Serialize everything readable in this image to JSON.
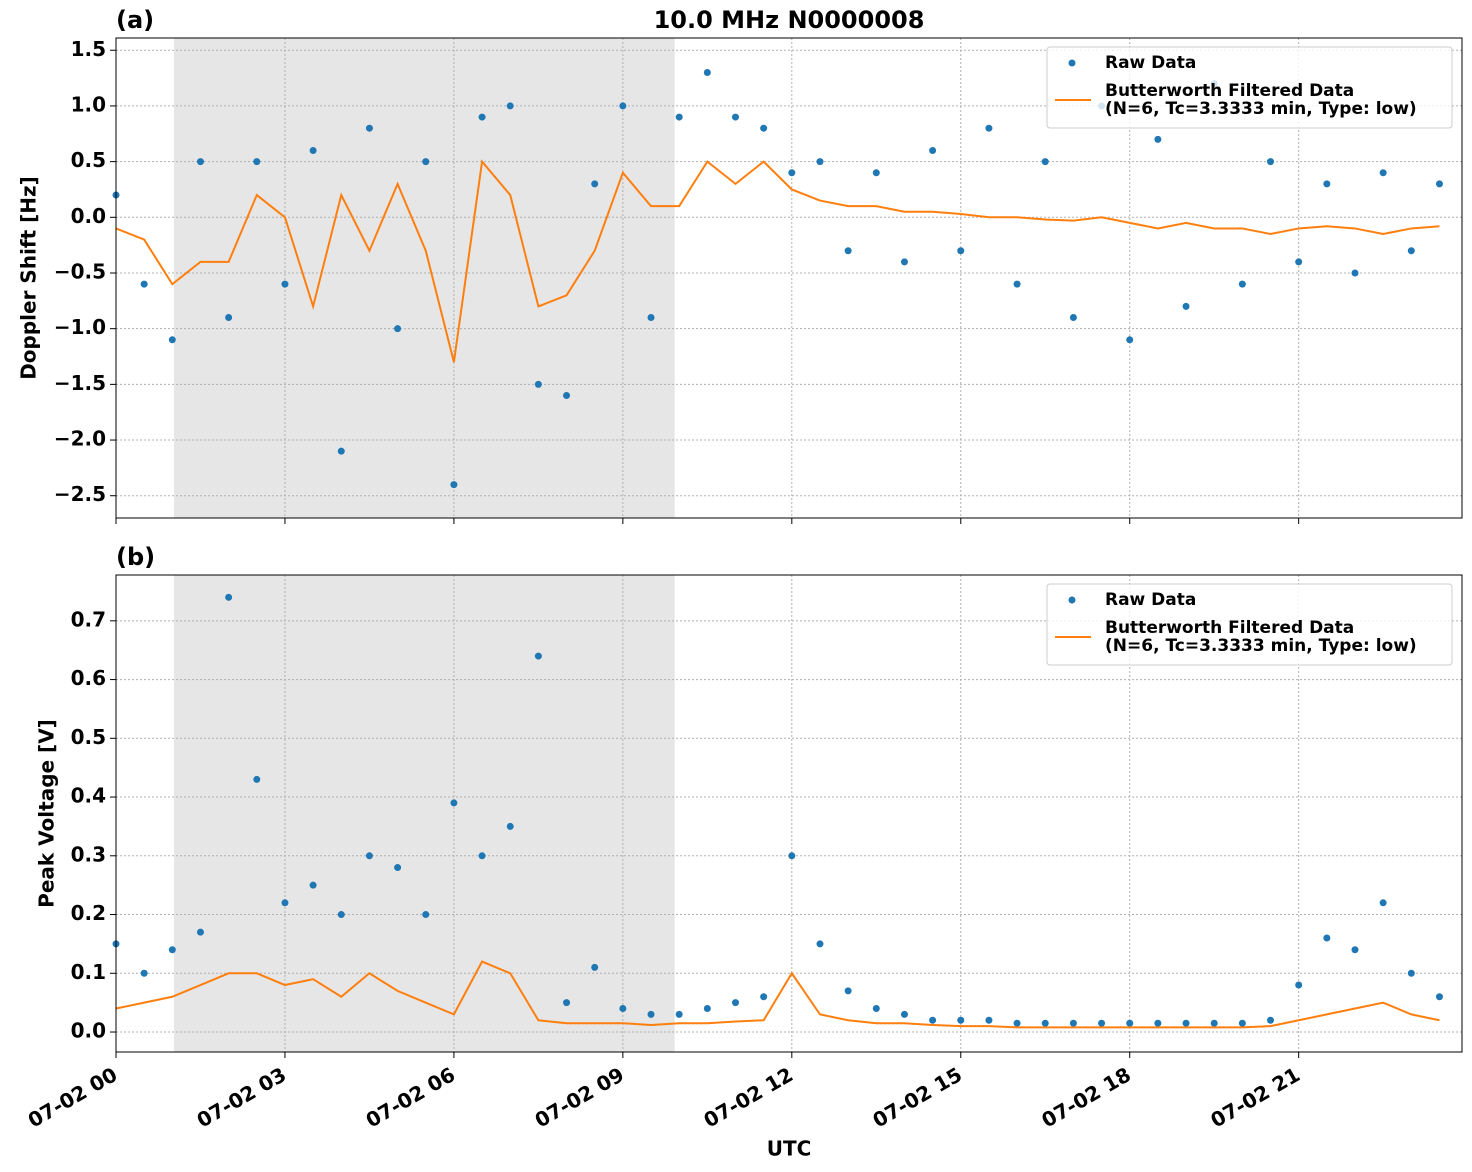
{
  "chart_data": [
    {
      "type": "line",
      "title": "10.0 MHz N0000008",
      "panel_label": "(a)",
      "ylabel": "Doppler Shift [Hz]",
      "x": [
        0,
        0.5,
        1,
        1.5,
        2,
        2.5,
        3,
        3.5,
        4,
        4.5,
        5,
        5.5,
        6,
        6.5,
        7,
        7.5,
        8,
        8.5,
        9,
        9.5,
        10,
        10.5,
        11,
        11.5,
        12,
        12.5,
        13,
        13.5,
        14,
        14.5,
        15,
        15.5,
        16,
        16.5,
        17,
        17.5,
        18,
        18.5,
        19,
        19.5,
        20,
        20.5,
        21,
        21.5,
        22,
        22.5,
        23,
        23.5
      ],
      "series": [
        {
          "name": "Raw Data",
          "color": "#1f77b4",
          "mode": "markers",
          "values": [
            0.2,
            -0.6,
            -1.1,
            0.5,
            -0.9,
            0.5,
            -0.6,
            0.6,
            -2.1,
            0.8,
            -1.0,
            0.5,
            -2.4,
            0.9,
            1.0,
            -1.5,
            -1.6,
            0.3,
            1.0,
            -0.9,
            0.9,
            1.3,
            0.9,
            0.8,
            0.4,
            0.5,
            -0.3,
            0.4,
            -0.4,
            0.6,
            -0.3,
            0.8,
            -0.6,
            0.5,
            -0.9,
            1.0,
            -1.1,
            0.7,
            -0.8,
            1.2,
            -0.6,
            0.5,
            -0.4,
            0.3,
            -0.5,
            0.4,
            -0.3,
            0.3
          ]
        },
        {
          "name": "Butterworth Filtered Data\n(N=6, Tc=3.3333 min, Type: low)",
          "color": "#ff7f0e",
          "mode": "lines",
          "values": [
            -0.1,
            -0.2,
            -0.6,
            -0.4,
            -0.4,
            0.2,
            0.0,
            -0.8,
            0.2,
            -0.3,
            0.3,
            -0.3,
            -1.3,
            0.5,
            0.2,
            -0.8,
            -0.7,
            -0.3,
            0.4,
            0.1,
            0.1,
            0.5,
            0.3,
            0.5,
            0.25,
            0.15,
            0.1,
            0.1,
            0.05,
            0.05,
            0.03,
            0.0,
            0.0,
            -0.02,
            -0.03,
            0.0,
            -0.05,
            -0.1,
            -0.05,
            -0.1,
            -0.1,
            -0.15,
            -0.1,
            -0.08,
            -0.1,
            -0.15,
            -0.1,
            -0.08
          ]
        }
      ],
      "xlim": [
        0,
        23.9
      ],
      "xticks": [
        0,
        3,
        6,
        9,
        12,
        15,
        18,
        21
      ],
      "ylim": [
        -2.7,
        1.61
      ],
      "yticks": [
        {
          "value": -2.5,
          "label": "−2.5"
        },
        {
          "value": -2.0,
          "label": "−2.0"
        },
        {
          "value": -1.5,
          "label": "−1.5"
        },
        {
          "value": -1.0,
          "label": "−1.0"
        },
        {
          "value": -0.5,
          "label": "−0.5"
        },
        {
          "value": 0.0,
          "label": "0.0"
        },
        0.5,
        {
          "value": 1.0,
          "label": "1.0"
        },
        1.5
      ],
      "highlight_xrange": [
        1.03,
        9.92
      ],
      "grid": true,
      "legend": "upper right"
    },
    {
      "type": "line",
      "panel_label": "(b)",
      "ylabel": "Peak Voltage [V]",
      "xlabel": "UTC",
      "x": [
        0,
        0.5,
        1,
        1.5,
        2,
        2.5,
        3,
        3.5,
        4,
        4.5,
        5,
        5.5,
        6,
        6.5,
        7,
        7.5,
        8,
        8.5,
        9,
        9.5,
        10,
        10.5,
        11,
        11.5,
        12,
        12.5,
        13,
        13.5,
        14,
        14.5,
        15,
        15.5,
        16,
        16.5,
        17,
        17.5,
        18,
        18.5,
        19,
        19.5,
        20,
        20.5,
        21,
        21.5,
        22,
        22.5,
        23,
        23.5
      ],
      "series": [
        {
          "name": "Raw Data",
          "color": "#1f77b4",
          "mode": "markers",
          "values": [
            0.15,
            0.1,
            0.14,
            0.17,
            0.74,
            0.43,
            0.22,
            0.25,
            0.2,
            0.3,
            0.28,
            0.2,
            0.39,
            0.3,
            0.35,
            0.64,
            0.05,
            0.11,
            0.04,
            0.03,
            0.03,
            0.04,
            0.05,
            0.06,
            0.3,
            0.15,
            0.07,
            0.04,
            0.03,
            0.02,
            0.02,
            0.02,
            0.015,
            0.015,
            0.015,
            0.015,
            0.015,
            0.015,
            0.015,
            0.015,
            0.015,
            0.02,
            0.08,
            0.16,
            0.14,
            0.22,
            0.1,
            0.06
          ]
        },
        {
          "name": "Butterworth Filtered Data\n(N=6, Tc=3.3333 min, Type: low)",
          "color": "#ff7f0e",
          "mode": "lines",
          "values": [
            0.04,
            0.05,
            0.06,
            0.08,
            0.1,
            0.1,
            0.08,
            0.09,
            0.06,
            0.1,
            0.07,
            0.05,
            0.03,
            0.12,
            0.1,
            0.02,
            0.015,
            0.015,
            0.015,
            0.012,
            0.015,
            0.015,
            0.018,
            0.02,
            0.1,
            0.03,
            0.02,
            0.015,
            0.015,
            0.012,
            0.01,
            0.01,
            0.008,
            0.008,
            0.008,
            0.008,
            0.008,
            0.008,
            0.008,
            0.008,
            0.008,
            0.01,
            0.02,
            0.03,
            0.04,
            0.05,
            0.03,
            0.02
          ]
        }
      ],
      "xlim": [
        0,
        23.9
      ],
      "xticks": [
        {
          "value": 0,
          "label": "07-02 00"
        },
        {
          "value": 3,
          "label": "07-02 03"
        },
        {
          "value": 6,
          "label": "07-02 06"
        },
        {
          "value": 9,
          "label": "07-02 09"
        },
        {
          "value": 12,
          "label": "07-02 12"
        },
        {
          "value": 15,
          "label": "07-02 15"
        },
        {
          "value": 18,
          "label": "07-02 18"
        },
        {
          "value": 21,
          "label": "07-02 21"
        }
      ],
      "ylim": [
        -0.034,
        0.778
      ],
      "yticks": [
        {
          "value": 0.0,
          "label": "0.0"
        },
        0.1,
        0.2,
        0.3,
        0.4,
        0.5,
        0.6,
        0.7
      ],
      "highlight_xrange": [
        1.03,
        9.92
      ],
      "grid": true,
      "legend": "upper right"
    }
  ]
}
